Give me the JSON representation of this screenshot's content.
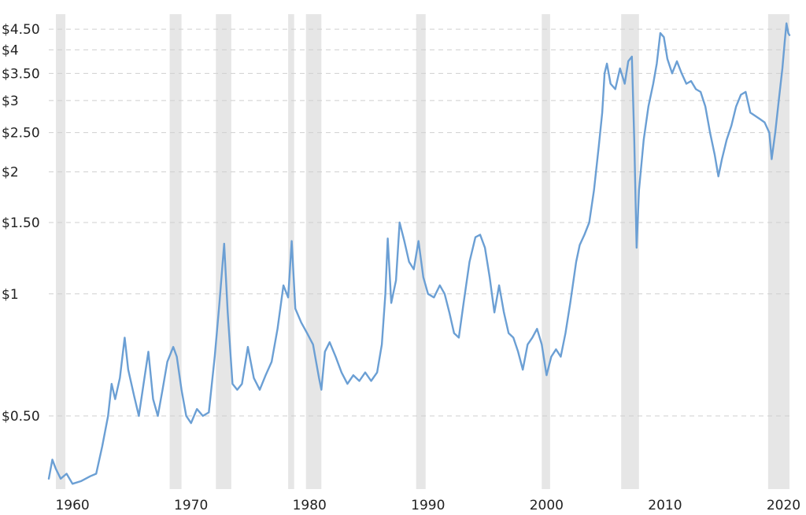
{
  "chart_data": {
    "type": "line",
    "title": "",
    "xlabel": "",
    "ylabel": "",
    "y_scale": "log",
    "xlim": [
      1958,
      2020.5
    ],
    "ylim": [
      0.33,
      4.9
    ],
    "grid": {
      "horizontal": true,
      "style": "dashed"
    },
    "colors": {
      "line": "#6b9fd4",
      "recession": "#e6e6e6",
      "grid": "#cfcfcf"
    },
    "y_ticks": [
      {
        "value": 0.5,
        "label": "$0.50"
      },
      {
        "value": 1,
        "label": "$1"
      },
      {
        "value": 1.5,
        "label": "$1.50"
      },
      {
        "value": 2,
        "label": "$2"
      },
      {
        "value": 2.5,
        "label": "$2.50"
      },
      {
        "value": 3,
        "label": "$3"
      },
      {
        "value": 3.5,
        "label": "$3.50"
      },
      {
        "value": 4,
        "label": "$4"
      },
      {
        "value": 4.5,
        "label": "$4.50"
      }
    ],
    "x_ticks": [
      {
        "value": 1960,
        "label": "1960"
      },
      {
        "value": 1970,
        "label": "1970"
      },
      {
        "value": 1980,
        "label": "1980"
      },
      {
        "value": 1990,
        "label": "1990"
      },
      {
        "value": 2000,
        "label": "2000"
      },
      {
        "value": 2010,
        "label": "2010"
      },
      {
        "value": 2020,
        "label": "2020"
      }
    ],
    "recessions": [
      [
        1958.6,
        1959.4
      ],
      [
        1968.2,
        1969.2
      ],
      [
        1972.1,
        1973.4
      ],
      [
        1978.2,
        1978.7
      ],
      [
        1979.7,
        1981.0
      ],
      [
        1989.0,
        1989.8
      ],
      [
        1999.6,
        2000.3
      ],
      [
        2006.3,
        2007.8
      ],
      [
        2018.7,
        2020.5
      ]
    ],
    "series": [
      {
        "values": [
          [
            1958.0,
            0.35
          ],
          [
            1958.3,
            0.39
          ],
          [
            1958.6,
            0.37
          ],
          [
            1959.0,
            0.35
          ],
          [
            1959.5,
            0.36
          ],
          [
            1960.0,
            0.34
          ],
          [
            1960.7,
            0.345
          ],
          [
            1961.5,
            0.355
          ],
          [
            1962.0,
            0.36
          ],
          [
            1962.5,
            0.42
          ],
          [
            1963.0,
            0.5
          ],
          [
            1963.3,
            0.6
          ],
          [
            1963.6,
            0.55
          ],
          [
            1964.0,
            0.62
          ],
          [
            1964.4,
            0.78
          ],
          [
            1964.7,
            0.65
          ],
          [
            1965.2,
            0.56
          ],
          [
            1965.6,
            0.5
          ],
          [
            1966.0,
            0.6
          ],
          [
            1966.4,
            0.72
          ],
          [
            1966.8,
            0.55
          ],
          [
            1967.2,
            0.5
          ],
          [
            1967.6,
            0.58
          ],
          [
            1968.0,
            0.68
          ],
          [
            1968.5,
            0.74
          ],
          [
            1968.8,
            0.7
          ],
          [
            1969.2,
            0.58
          ],
          [
            1969.6,
            0.5
          ],
          [
            1970.0,
            0.48
          ],
          [
            1970.5,
            0.52
          ],
          [
            1971.0,
            0.5
          ],
          [
            1971.5,
            0.51
          ],
          [
            1972.0,
            0.7
          ],
          [
            1972.4,
            0.95
          ],
          [
            1972.8,
            1.33
          ],
          [
            1973.1,
            0.9
          ],
          [
            1973.5,
            0.6
          ],
          [
            1973.9,
            0.58
          ],
          [
            1974.3,
            0.6
          ],
          [
            1974.8,
            0.74
          ],
          [
            1975.3,
            0.62
          ],
          [
            1975.8,
            0.58
          ],
          [
            1976.3,
            0.63
          ],
          [
            1976.8,
            0.68
          ],
          [
            1977.3,
            0.82
          ],
          [
            1977.8,
            1.05
          ],
          [
            1978.2,
            0.98
          ],
          [
            1978.5,
            1.35
          ],
          [
            1978.8,
            0.92
          ],
          [
            1979.3,
            0.85
          ],
          [
            1979.8,
            0.8
          ],
          [
            1980.3,
            0.75
          ],
          [
            1980.8,
            0.62
          ],
          [
            1981.0,
            0.58
          ],
          [
            1981.3,
            0.72
          ],
          [
            1981.7,
            0.76
          ],
          [
            1982.2,
            0.7
          ],
          [
            1982.7,
            0.64
          ],
          [
            1983.2,
            0.6
          ],
          [
            1983.7,
            0.63
          ],
          [
            1984.2,
            0.61
          ],
          [
            1984.7,
            0.64
          ],
          [
            1985.2,
            0.61
          ],
          [
            1985.7,
            0.64
          ],
          [
            1986.1,
            0.75
          ],
          [
            1986.4,
            1.0
          ],
          [
            1986.6,
            1.37
          ],
          [
            1986.9,
            0.95
          ],
          [
            1987.3,
            1.08
          ],
          [
            1987.6,
            1.5
          ],
          [
            1988.0,
            1.35
          ],
          [
            1988.4,
            1.2
          ],
          [
            1988.8,
            1.15
          ],
          [
            1989.2,
            1.35
          ],
          [
            1989.6,
            1.1
          ],
          [
            1990.0,
            1.0
          ],
          [
            1990.5,
            0.98
          ],
          [
            1991.0,
            1.05
          ],
          [
            1991.4,
            1.0
          ],
          [
            1991.8,
            0.9
          ],
          [
            1992.2,
            0.8
          ],
          [
            1992.6,
            0.78
          ],
          [
            1993.0,
            0.95
          ],
          [
            1993.5,
            1.2
          ],
          [
            1994.0,
            1.38
          ],
          [
            1994.4,
            1.4
          ],
          [
            1994.8,
            1.3
          ],
          [
            1995.2,
            1.1
          ],
          [
            1995.6,
            0.9
          ],
          [
            1996.0,
            1.05
          ],
          [
            1996.4,
            0.9
          ],
          [
            1996.8,
            0.8
          ],
          [
            1997.2,
            0.78
          ],
          [
            1997.6,
            0.72
          ],
          [
            1998.0,
            0.65
          ],
          [
            1998.4,
            0.75
          ],
          [
            1998.8,
            0.78
          ],
          [
            1999.2,
            0.82
          ],
          [
            1999.6,
            0.75
          ],
          [
            2000.0,
            0.63
          ],
          [
            2000.4,
            0.7
          ],
          [
            2000.8,
            0.73
          ],
          [
            2001.2,
            0.7
          ],
          [
            2001.6,
            0.8
          ],
          [
            2002.0,
            0.95
          ],
          [
            2002.5,
            1.2
          ],
          [
            2002.8,
            1.32
          ],
          [
            2003.2,
            1.4
          ],
          [
            2003.6,
            1.5
          ],
          [
            2004.0,
            1.8
          ],
          [
            2004.4,
            2.3
          ],
          [
            2004.7,
            2.8
          ],
          [
            2004.9,
            3.5
          ],
          [
            2005.1,
            3.7
          ],
          [
            2005.4,
            3.3
          ],
          [
            2005.8,
            3.2
          ],
          [
            2006.2,
            3.6
          ],
          [
            2006.6,
            3.3
          ],
          [
            2006.9,
            3.75
          ],
          [
            2007.2,
            3.85
          ],
          [
            2007.4,
            2.4
          ],
          [
            2007.6,
            1.3
          ],
          [
            2007.8,
            1.8
          ],
          [
            2008.2,
            2.4
          ],
          [
            2008.6,
            2.9
          ],
          [
            2009.0,
            3.3
          ],
          [
            2009.3,
            3.7
          ],
          [
            2009.6,
            4.4
          ],
          [
            2009.9,
            4.3
          ],
          [
            2010.2,
            3.8
          ],
          [
            2010.6,
            3.5
          ],
          [
            2011.0,
            3.75
          ],
          [
            2011.4,
            3.5
          ],
          [
            2011.8,
            3.3
          ],
          [
            2012.2,
            3.35
          ],
          [
            2012.6,
            3.2
          ],
          [
            2013.0,
            3.15
          ],
          [
            2013.4,
            2.9
          ],
          [
            2013.8,
            2.5
          ],
          [
            2014.2,
            2.2
          ],
          [
            2014.5,
            1.95
          ],
          [
            2014.8,
            2.15
          ],
          [
            2015.2,
            2.4
          ],
          [
            2015.6,
            2.6
          ],
          [
            2016.0,
            2.9
          ],
          [
            2016.4,
            3.1
          ],
          [
            2016.8,
            3.15
          ],
          [
            2017.2,
            2.8
          ],
          [
            2017.6,
            2.75
          ],
          [
            2018.0,
            2.7
          ],
          [
            2018.4,
            2.65
          ],
          [
            2018.8,
            2.5
          ],
          [
            2019.0,
            2.15
          ],
          [
            2019.3,
            2.5
          ],
          [
            2019.6,
            3.0
          ],
          [
            2019.9,
            3.6
          ],
          [
            2020.1,
            4.2
          ],
          [
            2020.25,
            4.65
          ],
          [
            2020.4,
            4.4
          ],
          [
            2020.5,
            4.35
          ]
        ]
      }
    ]
  }
}
